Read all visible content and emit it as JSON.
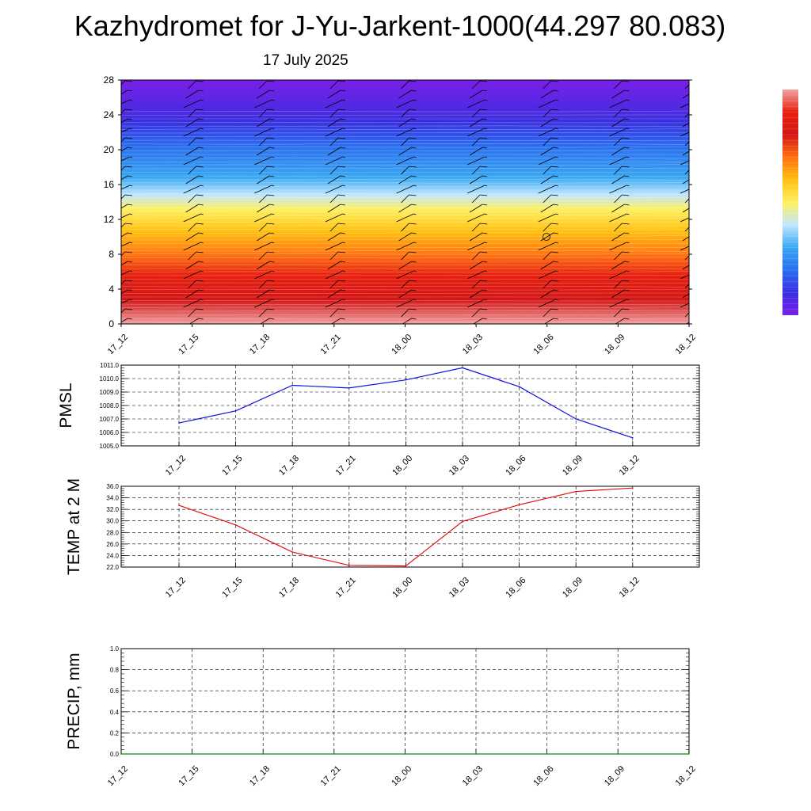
{
  "title": "Kazhydromet for J-Yu-Jarkent-1000(44.297 80.083)",
  "date": "17 July 2025",
  "chart_data": [
    {
      "type": "heatmap",
      "name": "cross-section",
      "x_ticks": [
        "17_12",
        "17_15",
        "17_18",
        "17_21",
        "18_00",
        "18_03",
        "18_06",
        "18_09",
        "18_12"
      ],
      "y_ticks": [
        0,
        4,
        8,
        12,
        16,
        20,
        24,
        28
      ],
      "ylim": [
        0,
        28
      ],
      "colormap": [
        "#7a1fe8",
        "#3b2fe0",
        "#2a6ef0",
        "#3aa8f2",
        "#bfe6ff",
        "#fff060",
        "#ffc010",
        "#ff7010",
        "#e82010",
        "#d21616",
        "#f0a0a0"
      ],
      "wind_barbs": true
    },
    {
      "type": "line",
      "ylabel": "PMSL",
      "categories": [
        "17_12",
        "17_15",
        "17_18",
        "17_21",
        "18_00",
        "18_03",
        "18_06",
        "18_09",
        "18_12"
      ],
      "values": [
        1006.7,
        1007.6,
        1009.5,
        1009.3,
        1009.9,
        1010.8,
        1009.4,
        1007.0,
        1005.6
      ],
      "ylim": [
        1005.0,
        1011.0
      ],
      "y_ticks": [
        "1005.0",
        "1006.0",
        "1007.0",
        "1008.0",
        "1009.0",
        "1010.0",
        "1011.0"
      ],
      "color": "#1010e0",
      "grid": true
    },
    {
      "type": "line",
      "ylabel": "TEMP at 2 M",
      "categories": [
        "17_12",
        "17_15",
        "17_18",
        "17_21",
        "18_00",
        "18_03",
        "18_06",
        "18_09",
        "18_12"
      ],
      "values": [
        32.7,
        29.3,
        24.6,
        22.3,
        22.2,
        29.9,
        32.8,
        35.1,
        35.7
      ],
      "ylim": [
        22.0,
        36.0
      ],
      "y_ticks": [
        "22.0",
        "24.0",
        "26.0",
        "28.0",
        "30.0",
        "32.0",
        "34.0",
        "36.0"
      ],
      "color": "#e01010",
      "grid": true
    },
    {
      "type": "line",
      "ylabel": "PRECIP, mm",
      "categories": [
        "17_12",
        "17_15",
        "17_18",
        "17_21",
        "18_00",
        "18_03",
        "18_06",
        "18_09",
        "18_12"
      ],
      "values": [
        0,
        0,
        0,
        0,
        0,
        0,
        0,
        0,
        0
      ],
      "ylim": [
        0.0,
        1.0
      ],
      "y_ticks": [
        "0.0",
        "0.2",
        "0.4",
        "0.6",
        "0.8",
        "1.0"
      ],
      "color": "#108010",
      "grid": true
    }
  ]
}
